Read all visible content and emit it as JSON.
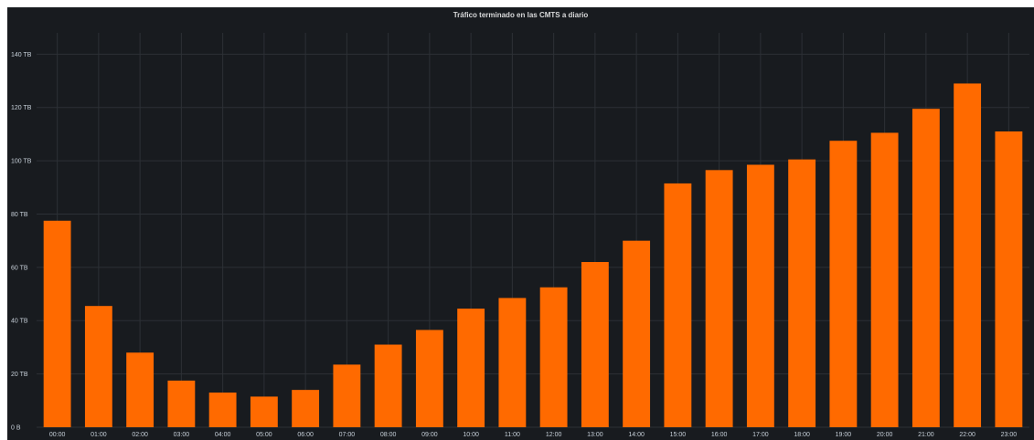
{
  "panel": {
    "title": "Tráfico terminado en las CMTS a diario"
  },
  "colors": {
    "background": "#181b1f",
    "bar": "#ff6a00",
    "grid": "#2c3036",
    "text": "#c7d0d9"
  },
  "chart_data": {
    "type": "bar",
    "title": "Tráfico terminado en las CMTS a diario",
    "xlabel": "",
    "ylabel": "",
    "unit": "TB",
    "categories": [
      "00:00",
      "01:00",
      "02:00",
      "03:00",
      "04:00",
      "05:00",
      "06:00",
      "07:00",
      "08:00",
      "09:00",
      "10:00",
      "11:00",
      "12:00",
      "13:00",
      "14:00",
      "15:00",
      "16:00",
      "17:00",
      "18:00",
      "19:00",
      "20:00",
      "21:00",
      "22:00",
      "23:00"
    ],
    "values": [
      77.5,
      45.5,
      28,
      17.5,
      13,
      11.5,
      14,
      23.5,
      31,
      36.5,
      44.5,
      48.5,
      52.5,
      62,
      70,
      91.5,
      96.5,
      98.5,
      100.5,
      107.5,
      110.5,
      119.5,
      129,
      111
    ],
    "ylim": [
      0,
      148
    ],
    "yticks": [
      0,
      20,
      40,
      60,
      80,
      100,
      120,
      140
    ],
    "ytick_labels": [
      "0 B",
      "20 TB",
      "40 TB",
      "60 TB",
      "80 TB",
      "100 TB",
      "120 TB",
      "140 TB"
    ],
    "grid": true,
    "legend": "none"
  }
}
